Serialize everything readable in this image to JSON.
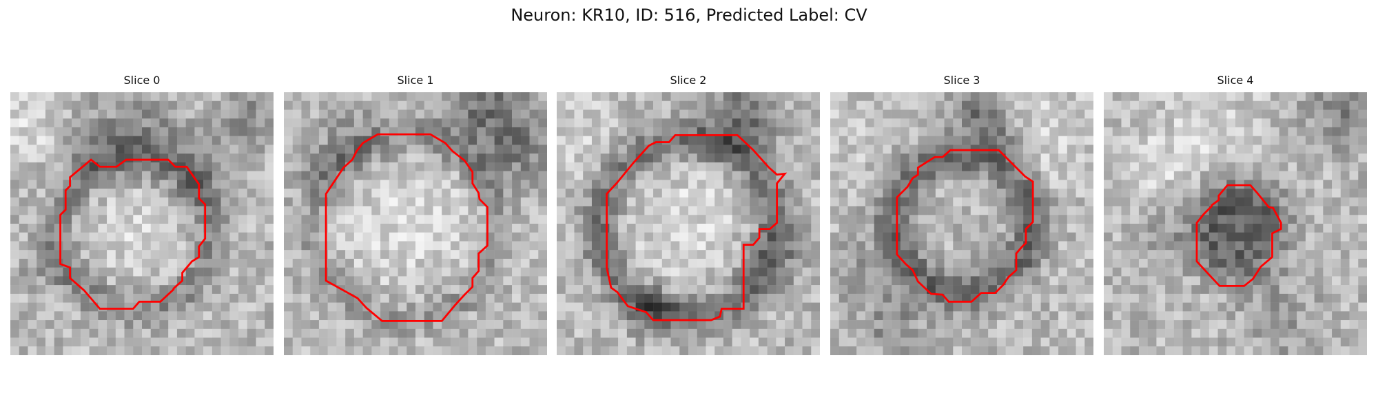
{
  "figure": {
    "title": "Neuron: KR10, ID: 516, Predicted Label: CV",
    "outline_color": "#ff0000"
  },
  "slices": [
    {
      "title": "Slice 0"
    },
    {
      "title": "Slice 1"
    },
    {
      "title": "Slice 2"
    },
    {
      "title": "Slice 3"
    },
    {
      "title": "Slice 4"
    }
  ]
}
